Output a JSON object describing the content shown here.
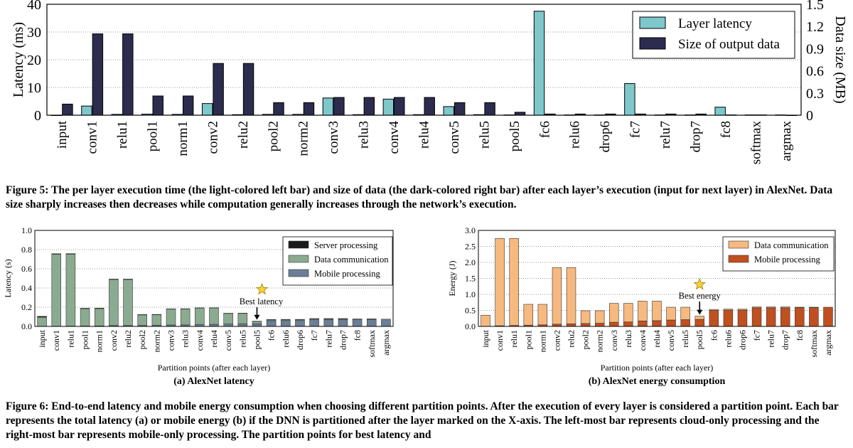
{
  "chart_data": [
    {
      "id": "fig5",
      "type": "bar",
      "categories": [
        "input",
        "conv1",
        "relu1",
        "pool1",
        "norm1",
        "conv2",
        "relu2",
        "pool2",
        "norm2",
        "conv3",
        "relu3",
        "conv4",
        "relu4",
        "conv5",
        "relu5",
        "pool5",
        "fc6",
        "relu6",
        "drop6",
        "fc7",
        "relu7",
        "drop7",
        "fc8",
        "softmax",
        "argmax"
      ],
      "series": [
        {
          "name": "Layer latency",
          "axis": "left",
          "color": "#7ec8cc",
          "values": [
            0,
            3.3,
            0.3,
            0.4,
            0.3,
            4.2,
            0.2,
            0.3,
            0.3,
            6.2,
            0.2,
            5.8,
            0.2,
            3.1,
            0.2,
            0.1,
            37.5,
            0.1,
            0.1,
            11.4,
            0.1,
            0.1,
            2.9,
            0.1,
            0.1
          ]
        },
        {
          "name": "Size of output data",
          "axis": "right",
          "color": "#2c2c4e",
          "values": [
            0.15,
            1.1,
            1.1,
            0.26,
            0.26,
            0.7,
            0.7,
            0.17,
            0.17,
            0.24,
            0.24,
            0.24,
            0.24,
            0.17,
            0.17,
            0.04,
            0.016,
            0.016,
            0.016,
            0.016,
            0.016,
            0.016,
            0.004,
            0.004,
            0.0001
          ]
        }
      ],
      "ylabel": "Latency (ms)",
      "y2label": "Data size (MB)",
      "ylim": [
        0,
        40
      ],
      "yticks": [
        "0",
        "10",
        "20",
        "30",
        "40"
      ],
      "y2lim": [
        0,
        1.5
      ],
      "y2ticks": [
        "0",
        "0.3",
        "0.6",
        "0.9",
        "1.2",
        "1.5"
      ],
      "legend_position": "top-right"
    },
    {
      "id": "fig6a",
      "type": "bar",
      "stacked": true,
      "categories": [
        "input",
        "conv1",
        "relu1",
        "pool1",
        "norm1",
        "conv2",
        "relu2",
        "pool2",
        "norm2",
        "conv3",
        "relu3",
        "conv4",
        "relu4",
        "conv5",
        "relu5",
        "pool5",
        "fc6",
        "relu6",
        "drop6",
        "fc7",
        "relu7",
        "drop7",
        "fc8",
        "softmax",
        "argmax"
      ],
      "series": [
        {
          "name": "Mobile processing",
          "color": "#6b7f96",
          "values": [
            0,
            0.002,
            0.003,
            0.004,
            0.005,
            0.009,
            0.009,
            0.01,
            0.011,
            0.015,
            0.016,
            0.021,
            0.022,
            0.025,
            0.026,
            0.027,
            0.06,
            0.061,
            0.061,
            0.07,
            0.071,
            0.071,
            0.073,
            0.074,
            0.075
          ]
        },
        {
          "name": "Data communication",
          "color": "#8aab90",
          "values": [
            0.095,
            0.75,
            0.75,
            0.18,
            0.18,
            0.48,
            0.48,
            0.11,
            0.11,
            0.165,
            0.165,
            0.17,
            0.17,
            0.11,
            0.11,
            0.025,
            0.01,
            0.01,
            0.01,
            0.01,
            0.01,
            0.01,
            0.003,
            0.003,
            0
          ]
        },
        {
          "name": "Server processing",
          "color": "#1a1a1a",
          "values": [
            0.01,
            0.005,
            0.005,
            0.005,
            0.005,
            0.004,
            0.004,
            0.004,
            0.004,
            0.003,
            0.003,
            0.002,
            0.002,
            0.002,
            0.002,
            0.002,
            0.002,
            0.002,
            0.002,
            0.002,
            0.001,
            0.001,
            0.001,
            0.001,
            0
          ]
        }
      ],
      "ylabel": "Latency (s)",
      "xlabel": "Partition points (after each layer)",
      "ylim": [
        0,
        1.0
      ],
      "yticks": [
        "0.0",
        "0.2",
        "0.4",
        "0.6",
        "0.8",
        "1.0"
      ],
      "annotation": {
        "label": "Best latency",
        "category": "pool5"
      },
      "subcaption": "(a) AlexNet latency",
      "legend_position": "top-right"
    },
    {
      "id": "fig6b",
      "type": "bar",
      "stacked": true,
      "categories": [
        "input",
        "conv1",
        "relu1",
        "pool1",
        "norm1",
        "conv2",
        "relu2",
        "pool2",
        "norm2",
        "conv3",
        "relu3",
        "conv4",
        "relu4",
        "conv5",
        "relu5",
        "pool5",
        "fc6",
        "relu6",
        "drop6",
        "fc7",
        "relu7",
        "drop7",
        "fc8",
        "softmax",
        "argmax"
      ],
      "series": [
        {
          "name": "Mobile processing",
          "color": "#c0501f",
          "values": [
            0,
            0.02,
            0.03,
            0.04,
            0.05,
            0.07,
            0.08,
            0.09,
            0.1,
            0.13,
            0.14,
            0.17,
            0.18,
            0.2,
            0.21,
            0.22,
            0.5,
            0.51,
            0.51,
            0.58,
            0.58,
            0.58,
            0.59,
            0.59,
            0.6
          ]
        },
        {
          "name": "Data communication",
          "color": "#f6b97f",
          "values": [
            0.35,
            2.73,
            2.72,
            0.65,
            0.64,
            1.77,
            1.76,
            0.4,
            0.39,
            0.59,
            0.58,
            0.62,
            0.61,
            0.4,
            0.39,
            0.1,
            0.03,
            0.03,
            0.03,
            0.03,
            0.03,
            0.03,
            0.01,
            0.01,
            0
          ]
        }
      ],
      "ylabel": "Energy (J)",
      "xlabel": "Partition points (after each layer)",
      "ylim": [
        0,
        3.0
      ],
      "yticks": [
        "0.0",
        "0.5",
        "1.0",
        "1.5",
        "2.0",
        "2.5",
        "3.0"
      ],
      "annotation": {
        "label": "Best energy",
        "category": "pool5"
      },
      "subcaption": "(b) AlexNet energy consumption",
      "legend_position": "top-right"
    }
  ],
  "captions": {
    "fig5": "Figure 5: The per layer execution time (the light-colored left bar) and size of data (the dark-colored right bar) after each layer’s execution (input for next layer) in AlexNet. Data size sharply increases then decreases while computation generally increases through the network’s execution.",
    "fig6": "Figure 6: End-to-end latency and mobile energy consumption when choosing different partition points. After the execution of every layer is considered a partition point. Each bar represents the total latency (a) or mobile energy (b) if the DNN is partitioned after the layer marked on the X-axis. The left-most bar represents cloud-only processing and the right-most bar represents mobile-only processing. The partition points for best latency and"
  }
}
